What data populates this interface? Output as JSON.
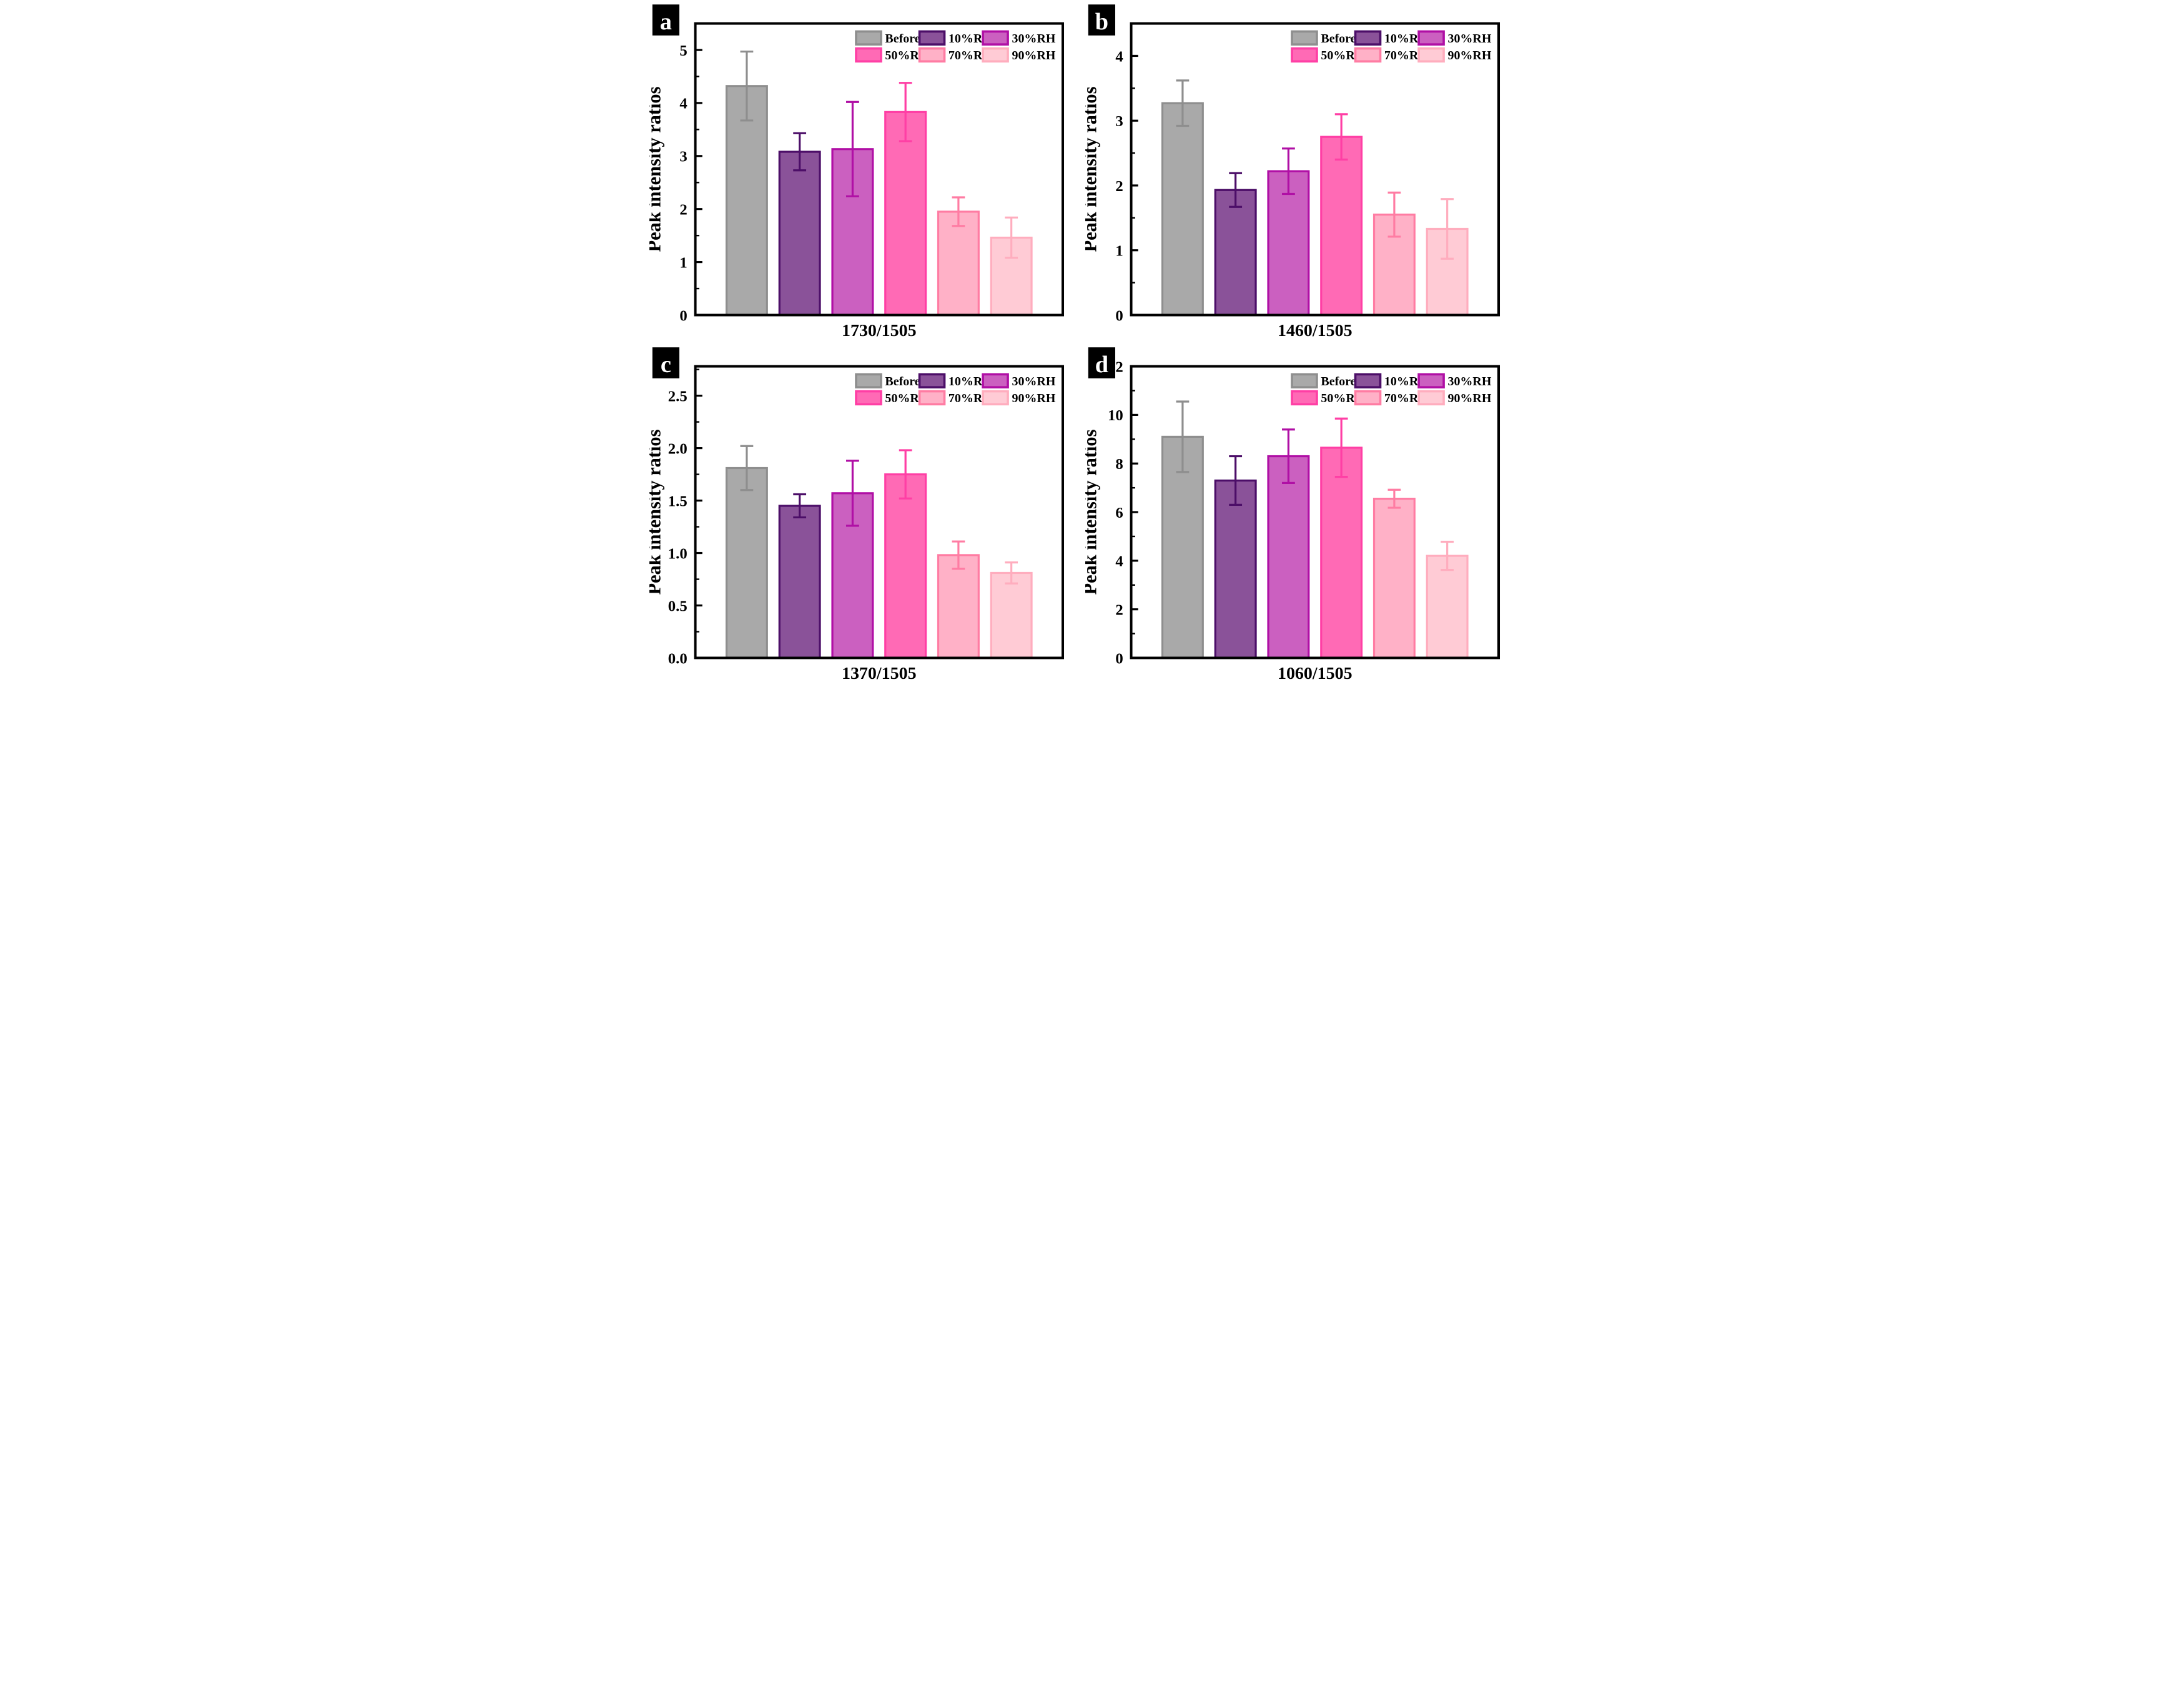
{
  "figure": {
    "ylabel": "Peak intensity ratios",
    "legend_labels": [
      "Before",
      "10%RH",
      "30%RH",
      "50%RH",
      "70%RH",
      "90%RH"
    ]
  },
  "series_colors": [
    {
      "label": "Before",
      "fill": "#a9a9a9",
      "border": "#8e8e8e"
    },
    {
      "label": "10%RH",
      "fill": "#8a5299",
      "border": "#4c0e68"
    },
    {
      "label": "30%RH",
      "fill": "#cb60c0",
      "border": "#b00fa5"
    },
    {
      "label": "50%RH",
      "fill": "#ff6ab5",
      "border": "#ff3fa5"
    },
    {
      "label": "70%RH",
      "fill": "#ffb1c7",
      "border": "#ff7ca3"
    },
    {
      "label": "90%RH",
      "fill": "#ffcbd5",
      "border": "#ffadbe"
    }
  ],
  "chart_data": [
    {
      "panel_label": "a",
      "type": "bar",
      "title": "",
      "xlabel": "1730/1505",
      "ylabel": "Peak intensity ratios",
      "categories": [
        "Before",
        "10%RH",
        "30%RH",
        "50%RH",
        "70%RH",
        "90%RH"
      ],
      "values": [
        4.32,
        3.08,
        3.13,
        3.83,
        1.95,
        1.46
      ],
      "errors": [
        0.65,
        0.35,
        0.89,
        0.55,
        0.27,
        0.38
      ],
      "ylim": [
        0,
        5.5
      ],
      "yticks": [
        0,
        1,
        2,
        3,
        4,
        5
      ],
      "ytick_labels": [
        "0",
        "1",
        "2",
        "3",
        "4",
        "5"
      ],
      "minor_step": 0.5,
      "legend_position": "top-right",
      "grid": false
    },
    {
      "panel_label": "b",
      "type": "bar",
      "title": "",
      "xlabel": "1460/1505",
      "ylabel": "Peak intensity ratios",
      "categories": [
        "Before",
        "10%RH",
        "30%RH",
        "50%RH",
        "70%RH",
        "90%RH"
      ],
      "values": [
        3.27,
        1.93,
        2.22,
        2.75,
        1.55,
        1.33
      ],
      "errors": [
        0.35,
        0.26,
        0.35,
        0.35,
        0.34,
        0.46
      ],
      "ylim": [
        0,
        4.5
      ],
      "yticks": [
        0,
        1,
        2,
        3,
        4
      ],
      "ytick_labels": [
        "0",
        "1",
        "2",
        "3",
        "4"
      ],
      "minor_step": 0.5,
      "legend_position": "top-right",
      "grid": false
    },
    {
      "panel_label": "c",
      "type": "bar",
      "title": "",
      "xlabel": "1370/1505",
      "ylabel": "Peak intensity ratios",
      "categories": [
        "Before",
        "10%RH",
        "30%RH",
        "50%RH",
        "70%RH",
        "90%RH"
      ],
      "values": [
        1.81,
        1.45,
        1.57,
        1.75,
        0.98,
        0.81
      ],
      "errors": [
        0.21,
        0.11,
        0.31,
        0.23,
        0.13,
        0.1
      ],
      "ylim": [
        0,
        2.78
      ],
      "yticks": [
        0,
        0.5,
        1.0,
        1.5,
        2.0,
        2.5
      ],
      "ytick_labels": [
        "0.0",
        "0.5",
        "1.0",
        "1.5",
        "2.0",
        "2.5"
      ],
      "minor_step": 0.25,
      "legend_position": "top-right",
      "grid": false
    },
    {
      "panel_label": "d",
      "type": "bar",
      "title": "",
      "xlabel": "1060/1505",
      "ylabel": "Peak intensity ratios",
      "categories": [
        "Before",
        "10%RH",
        "30%RH",
        "50%RH",
        "70%RH",
        "90%RH"
      ],
      "values": [
        9.1,
        7.3,
        8.3,
        8.65,
        6.55,
        4.2
      ],
      "errors": [
        1.45,
        1.0,
        1.1,
        1.2,
        0.37,
        0.58
      ],
      "ylim": [
        0,
        12
      ],
      "yticks": [
        0,
        2,
        4,
        6,
        8,
        10,
        12
      ],
      "ytick_labels": [
        "0",
        "2",
        "4",
        "6",
        "8",
        "10",
        "12"
      ],
      "minor_step": 1,
      "legend_position": "top-right",
      "grid": false
    }
  ]
}
